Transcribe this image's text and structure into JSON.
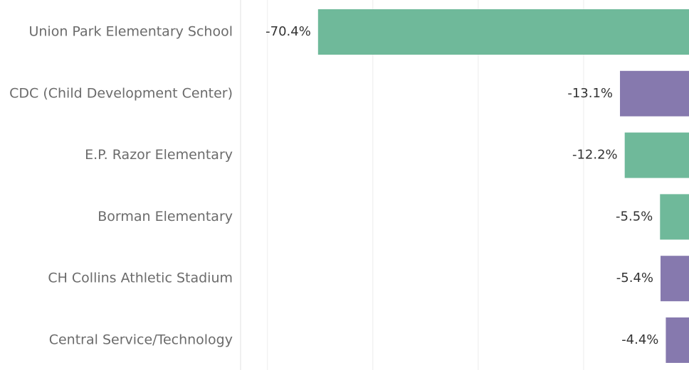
{
  "chart_data": {
    "type": "hbar",
    "categories": [
      "Union Park Elementary School",
      "CDC (Child Development Center)",
      "E.P. Razor Elementary",
      "Borman Elementary",
      "CH Collins Athletic Stadium",
      "Central Service/Technology"
    ],
    "values": [
      -70.4,
      -13.1,
      -12.2,
      -5.5,
      -5.4,
      -4.4
    ],
    "value_labels": [
      "-70.4%",
      "-13.1%",
      "-12.2%",
      "-5.5%",
      "-5.4%",
      "-4.4%"
    ],
    "colors": [
      "#6fb99a",
      "#8679ae",
      "#6fb99a",
      "#6fb99a",
      "#8679ae",
      "#8679ae"
    ],
    "xlim": [
      -85.1,
      0
    ],
    "xticks": [
      -80,
      -60,
      -40,
      -20
    ],
    "grid": true
  }
}
